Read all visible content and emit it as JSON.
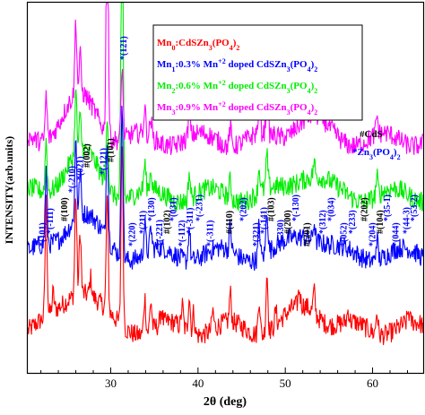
{
  "chart_data": {
    "type": "line",
    "xlabel": "2θ (deg)",
    "ylabel": "INTENSITY(arb.units)",
    "xlim": [
      20.5,
      65.8
    ],
    "xticks": [
      30,
      40,
      50,
      60
    ],
    "xticks_labels": [
      "30",
      "40",
      "50",
      "60"
    ],
    "grid": false,
    "legend_position": "top-right",
    "series": [
      {
        "name_parts": [
          {
            "t": "Mn"
          },
          {
            "t": "0",
            "s": "sub"
          },
          {
            "t": ":CdSZn"
          },
          {
            "t": "3",
            "s": "sub"
          },
          {
            "t": "(PO"
          },
          {
            "t": "4",
            "s": "sub"
          },
          {
            "t": ")"
          },
          {
            "t": "2",
            "s": "sub"
          }
        ],
        "color": "#ff0000",
        "baseline": 0.12,
        "peaks": [
          [
            22.6,
            0.31
          ],
          [
            23.4,
            0.05
          ],
          [
            26.0,
            0.27
          ],
          [
            26.5,
            0.17
          ],
          [
            27.7,
            0.05
          ],
          [
            29.6,
            0.3
          ],
          [
            31.3,
            0.51
          ],
          [
            33.9,
            0.1
          ],
          [
            34.6,
            0.08
          ],
          [
            35.8,
            0.04
          ],
          [
            38.2,
            0.06
          ],
          [
            39.0,
            0.1
          ],
          [
            39.5,
            0.06
          ],
          [
            41.7,
            0.05
          ],
          [
            43.7,
            0.08
          ],
          [
            47.0,
            0.1
          ],
          [
            47.9,
            0.16
          ],
          [
            48.9,
            0.04
          ],
          [
            51.6,
            0.04
          ],
          [
            53.3,
            0.06
          ],
          [
            57.2,
            0.03
          ],
          [
            60.5,
            0.06
          ],
          [
            64.1,
            0.03
          ]
        ]
      },
      {
        "name_parts": [
          {
            "t": "Mn"
          },
          {
            "t": "1",
            "s": "sub"
          },
          {
            "t": ":0.3% Mn"
          },
          {
            "t": "+2",
            "s": "sup"
          },
          {
            "t": " doped CdSZn"
          },
          {
            "t": "3",
            "s": "sub"
          },
          {
            "t": "(PO"
          },
          {
            "t": "4",
            "s": "sub"
          },
          {
            "t": ")"
          },
          {
            "t": "2",
            "s": "sub"
          }
        ],
        "color": "#0000ff",
        "baseline": 0.32,
        "peaks": [
          [
            22.6,
            0.2
          ],
          [
            26.0,
            0.22
          ],
          [
            26.5,
            0.12
          ],
          [
            29.6,
            0.28
          ],
          [
            31.3,
            0.44
          ],
          [
            33.9,
            0.08
          ],
          [
            34.6,
            0.06
          ],
          [
            39.0,
            0.09
          ],
          [
            43.7,
            0.07
          ],
          [
            47.0,
            0.09
          ],
          [
            47.9,
            0.12
          ],
          [
            53.3,
            0.05
          ],
          [
            60.5,
            0.06
          ]
        ]
      },
      {
        "name_parts": [
          {
            "t": "Mn"
          },
          {
            "t": "2",
            "s": "sub"
          },
          {
            "t": ":0.6% Mn"
          },
          {
            "t": "+2",
            "s": "sup"
          },
          {
            "t": " doped CdSZn"
          },
          {
            "t": "3",
            "s": "sub"
          },
          {
            "t": "(PO"
          },
          {
            "t": "4",
            "s": "sub"
          },
          {
            "t": ")"
          },
          {
            "t": "2",
            "s": "sub"
          }
        ],
        "color": "#00ee00",
        "baseline": 0.48,
        "peaks": [
          [
            22.6,
            0.14
          ],
          [
            26.0,
            0.17
          ],
          [
            26.5,
            0.09
          ],
          [
            29.6,
            0.2
          ],
          [
            31.3,
            1.0
          ],
          [
            33.9,
            0.07
          ],
          [
            34.6,
            0.05
          ],
          [
            39.0,
            0.07
          ],
          [
            43.7,
            0.05
          ],
          [
            47.0,
            0.07
          ],
          [
            47.9,
            0.09
          ],
          [
            53.3,
            0.04
          ],
          [
            60.5,
            0.05
          ]
        ]
      },
      {
        "name_parts": [
          {
            "t": "Mn"
          },
          {
            "t": "3",
            "s": "sub"
          },
          {
            "t": ":0.9% Mn"
          },
          {
            "t": "+2",
            "s": "sup"
          },
          {
            "t": " doped CdSZn"
          },
          {
            "t": "3",
            "s": "sub"
          },
          {
            "t": "(PO"
          },
          {
            "t": "4",
            "s": "sub"
          },
          {
            "t": ")"
          },
          {
            "t": "2",
            "s": "sub"
          }
        ],
        "color": "#ff00ff",
        "baseline": 0.63,
        "peaks": [
          [
            22.6,
            0.12
          ],
          [
            26.0,
            0.2
          ],
          [
            26.5,
            0.1
          ],
          [
            29.6,
            0.75
          ],
          [
            31.3,
            0.2
          ],
          [
            33.9,
            0.07
          ],
          [
            34.6,
            0.05
          ],
          [
            39.0,
            0.07
          ],
          [
            43.7,
            0.05
          ],
          [
            47.0,
            0.08
          ],
          [
            47.9,
            0.1
          ],
          [
            53.3,
            0.04
          ],
          [
            60.5,
            0.05
          ]
        ]
      }
    ],
    "peak_labels": [
      {
        "text": "*(101)",
        "x": 22.5,
        "color": "#0000ff"
      },
      {
        "text": "*(-111)",
        "x": 23.4,
        "color": "#0000ff"
      },
      {
        "text": "#(100)",
        "x": 25.0,
        "color": "#000000"
      },
      {
        "text": "*(-210)",
        "x": 25.9,
        "color": "#0000ff"
      },
      {
        "text": "*(021)",
        "x": 26.8,
        "color": "#0000ff"
      },
      {
        "text": "#(002)",
        "x": 27.6,
        "color": "#000000"
      },
      {
        "text": "*(-121)",
        "x": 29.5,
        "color": "#0000ff"
      },
      {
        "text": "#(101)",
        "x": 30.3,
        "color": "#000000"
      },
      {
        "text": "*(121)",
        "x": 31.8,
        "color": "#0000ff"
      },
      {
        "text": "*(220)",
        "x": 32.8,
        "color": "#0000ff"
      },
      {
        "text": "*(211)",
        "x": 34.0,
        "color": "#0000ff"
      },
      {
        "text": "*(130)",
        "x": 35.0,
        "color": "#0000ff"
      },
      {
        "text": "*(-221)",
        "x": 35.9,
        "color": "#0000ff"
      },
      {
        "text": "#(102)",
        "x": 36.8,
        "color": "#000000"
      },
      {
        "text": "*(031)",
        "x": 37.5,
        "color": "#0000ff"
      },
      {
        "text": "*(-112)",
        "x": 38.5,
        "color": "#0000ff"
      },
      {
        "text": "*(-311)",
        "x": 39.4,
        "color": "#0000ff"
      },
      {
        "text": "*(-231)",
        "x": 40.5,
        "color": "#0000ff"
      },
      {
        "text": "*(-311)",
        "x": 41.7,
        "color": "#0000ff"
      },
      {
        "text": "#(110)",
        "x": 43.9,
        "color": "#000000"
      },
      {
        "text": "*(202)",
        "x": 45.5,
        "color": "#0000ff"
      },
      {
        "text": "*(321)",
        "x": 47.0,
        "color": "#0000ff"
      },
      {
        "text": "*(-141)",
        "x": 47.9,
        "color": "#0000ff"
      },
      {
        "text": "#(103)",
        "x": 48.7,
        "color": "#000000"
      },
      {
        "text": "*(-330)",
        "x": 49.8,
        "color": "#0000ff"
      },
      {
        "text": "#(200)",
        "x": 50.6,
        "color": "#000000"
      },
      {
        "text": "*(-130)",
        "x": 51.5,
        "color": "#0000ff"
      },
      {
        "text": "#(201)",
        "x": 52.8,
        "color": "#000000"
      },
      {
        "text": "*(312)",
        "x": 54.6,
        "color": "#0000ff"
      },
      {
        "text": "*(034)",
        "x": 55.6,
        "color": "#0000ff"
      },
      {
        "text": "*(052)",
        "x": 57.0,
        "color": "#0000ff"
      },
      {
        "text": "*(233)",
        "x": 58.0,
        "color": "#0000ff"
      },
      {
        "text": "#(202)",
        "x": 59.4,
        "color": "#000000"
      },
      {
        "text": "*(204)",
        "x": 60.3,
        "color": "#0000ff"
      },
      {
        "text": "#(104)",
        "x": 61.2,
        "color": "#000000"
      },
      {
        "text": "*(35-1)",
        "x": 62.0,
        "color": "#0000ff"
      },
      {
        "text": "*(044)",
        "x": 63.0,
        "color": "#0000ff"
      },
      {
        "text": "*(44-3)",
        "x": 64.2,
        "color": "#0000ff"
      },
      {
        "text": "*(53-2)",
        "x": 65.1,
        "color": "#0000ff"
      }
    ],
    "marker_legend": [
      {
        "parts": [
          {
            "t": "#CdS"
          }
        ],
        "color": "#000000"
      },
      {
        "parts": [
          {
            "t": "*Zn"
          },
          {
            "t": "3",
            "s": "sub"
          },
          {
            "t": "(PO"
          },
          {
            "t": "4",
            "s": "sub"
          },
          {
            "t": ")"
          },
          {
            "t": "2",
            "s": "sub"
          }
        ],
        "color": "#0000ff"
      }
    ]
  }
}
